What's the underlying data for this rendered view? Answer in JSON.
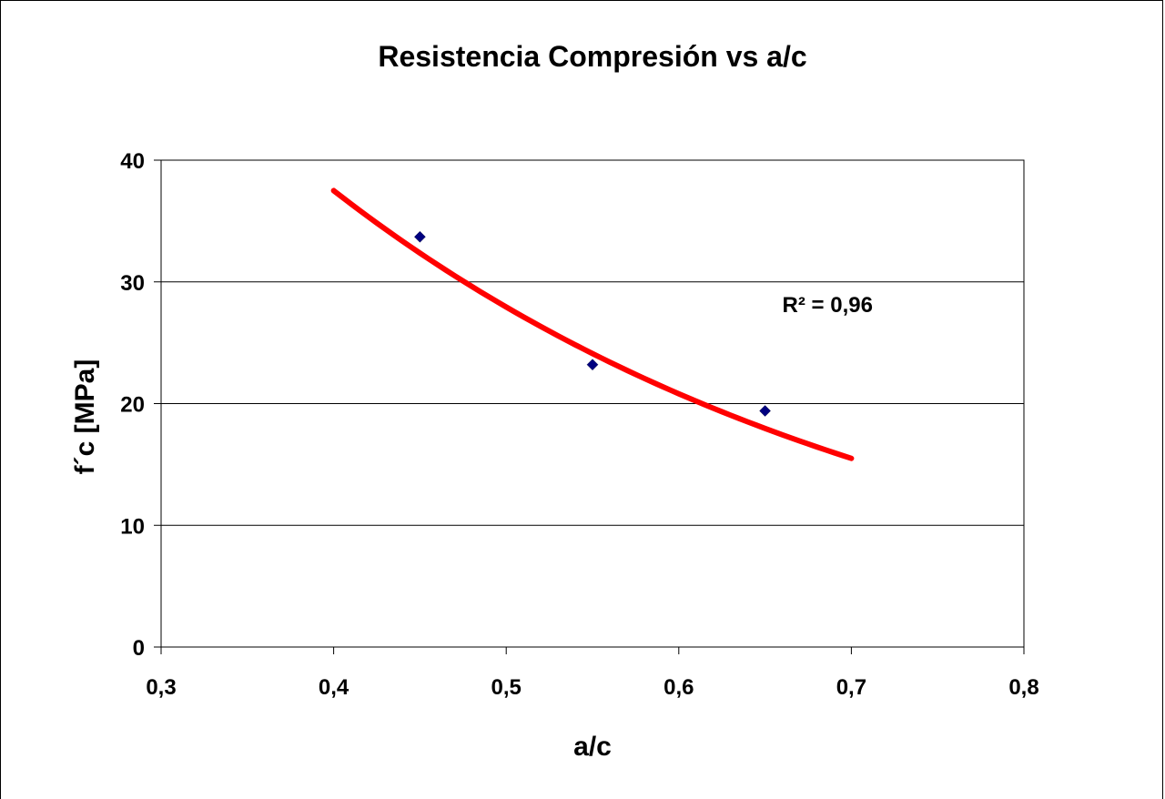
{
  "chart_data": {
    "type": "scatter",
    "title": "Resistencia Compresión vs a/c",
    "xlabel": "a/c",
    "ylabel": "f´c [MPa]",
    "xlim": [
      0.3,
      0.8
    ],
    "ylim": [
      0,
      40
    ],
    "x_ticks": [
      0.3,
      0.4,
      0.5,
      0.6,
      0.7,
      0.8
    ],
    "x_tick_labels": [
      "0,3",
      "0,4",
      "0,5",
      "0,6",
      "0,7",
      "0,8"
    ],
    "y_ticks": [
      0,
      10,
      20,
      30,
      40
    ],
    "y_tick_labels": [
      "0",
      "10",
      "20",
      "30",
      "40"
    ],
    "grid": "horizontal",
    "series": [
      {
        "type": "scatter",
        "marker": "diamond",
        "color": "#000080",
        "x": [
          0.45,
          0.55,
          0.65
        ],
        "y": [
          33.7,
          23.2,
          19.4
        ]
      },
      {
        "type": "trendline",
        "fit": "exponential",
        "color": "#ff0000",
        "x_range": [
          0.4,
          0.7
        ],
        "y_at_start": 37.5,
        "y_at_end": 15.5
      }
    ],
    "annotations": [
      {
        "text": "R² = 0,96",
        "x": 0.66,
        "y": 27.5
      }
    ]
  }
}
